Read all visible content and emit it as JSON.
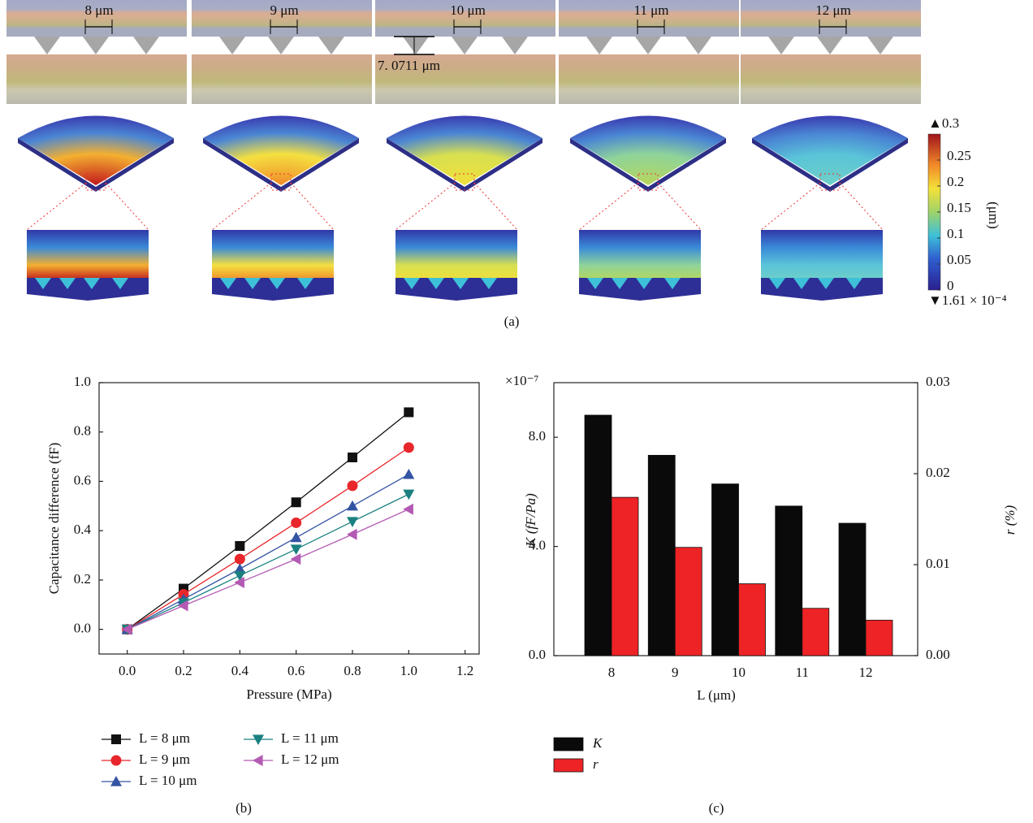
{
  "figure_a": {
    "spacings": [
      "8 μm",
      "9 μm",
      "10 μm",
      "11 μm",
      "12 μm"
    ],
    "depth": "7. 0711 μm",
    "colorbar": {
      "max": "▲0.3",
      "ticks": [
        "0.25",
        "0.2",
        "0.15",
        "0.1",
        "0.05",
        "0"
      ],
      "min": "▼1.61 × 10⁻⁴",
      "unit": "(μm)"
    },
    "caption": "(a)"
  },
  "chart_data": [
    {
      "type": "line",
      "caption": "(b)",
      "x_label": "Pressure (MPa)",
      "y_label": "Capacitance difference (fF)",
      "x": [
        0,
        0.2,
        0.4,
        0.6,
        0.8,
        1.0
      ],
      "series": [
        {
          "name": "L = 8 μm",
          "color": "#111111",
          "marker": "square",
          "values": [
            0,
            0.165,
            0.338,
            0.515,
            0.697,
            0.88
          ]
        },
        {
          "name": "L = 9 μm",
          "color": "#e8262b",
          "marker": "circle",
          "values": [
            0,
            0.142,
            0.285,
            0.432,
            0.582,
            0.737
          ]
        },
        {
          "name": "L = 10 μm",
          "color": "#3354a3",
          "marker": "triangle-up",
          "values": [
            0,
            0.122,
            0.245,
            0.372,
            0.5,
            0.628
          ]
        },
        {
          "name": "L = 11 μm",
          "color": "#1a8080",
          "marker": "triangle-down",
          "values": [
            0,
            0.108,
            0.218,
            0.325,
            0.437,
            0.548
          ]
        },
        {
          "name": "L = 12 μm",
          "color": "#b35ab3",
          "marker": "triangle-left",
          "values": [
            0,
            0.096,
            0.19,
            0.285,
            0.385,
            0.487
          ]
        }
      ],
      "xlim": [
        -0.1,
        1.25
      ],
      "xticks": [
        {
          "value": 0,
          "label": "0.0"
        },
        0.2,
        0.4,
        0.6,
        0.8,
        {
          "value": 1,
          "label": "1.0"
        },
        1.2
      ],
      "ylim": [
        -0.1,
        1.0
      ],
      "yticks": [
        {
          "value": 0,
          "label": "0.0"
        },
        0.2,
        0.4,
        0.6,
        0.8,
        {
          "value": 1,
          "label": "1.0"
        }
      ]
    },
    {
      "type": "bar",
      "caption": "(c)",
      "x_label": "L (μm)",
      "y_label": "K (fF/Pa)",
      "y2_label": "r (%)",
      "y_multiplier": "×10⁻⁷",
      "categories": [
        "8",
        "9",
        "10",
        "11",
        "12"
      ],
      "series": [
        {
          "name": "K",
          "color": "#0a0a0a",
          "values": [
            8.81,
            7.34,
            6.29,
            5.48,
            4.85
          ]
        },
        {
          "name": "r",
          "color": "#ee2326",
          "axis": "y2",
          "values": [
            0.0174,
            0.0119,
            0.0079,
            0.0052,
            0.0039
          ]
        }
      ],
      "ylim": [
        0,
        10
      ],
      "yticks": [
        {
          "value": 0,
          "label": "0.0"
        },
        {
          "value": 4,
          "label": "4.0"
        },
        {
          "value": 8,
          "label": "8.0"
        }
      ],
      "y2lim": [
        0,
        0.03
      ],
      "y2ticks": [
        {
          "value": 0,
          "label": "0.00"
        },
        0.01,
        0.02,
        0.03
      ]
    }
  ]
}
